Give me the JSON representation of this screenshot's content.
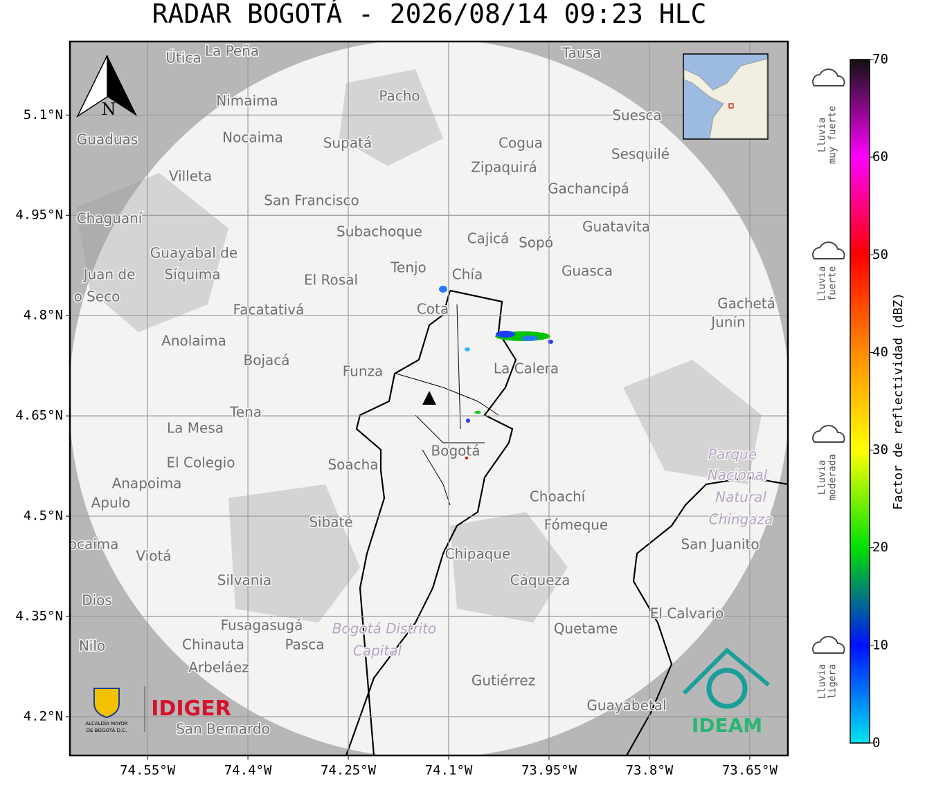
{
  "title": "RADAR BOGOTÁ - 2026/08/14 09:23 HLC",
  "map": {
    "xlim": [
      -74.666,
      -73.593
    ],
    "ylim": [
      4.142,
      5.21
    ],
    "xticks": [
      {
        "value": -74.55,
        "label": "74.55°W"
      },
      {
        "value": -74.4,
        "label": "74.4°W"
      },
      {
        "value": -74.25,
        "label": "74.25°W"
      },
      {
        "value": -74.1,
        "label": "74.1°W"
      },
      {
        "value": -73.95,
        "label": "73.95°W"
      },
      {
        "value": -73.8,
        "label": "73.8°W"
      },
      {
        "value": -73.65,
        "label": "73.65°W"
      }
    ],
    "yticks": [
      {
        "value": 5.1,
        "label": "5.1°N"
      },
      {
        "value": 4.95,
        "label": "4.95°N"
      },
      {
        "value": 4.8,
        "label": "4.8°N"
      },
      {
        "value": 4.65,
        "label": "4.65°N"
      },
      {
        "value": 4.5,
        "label": "4.5°N"
      },
      {
        "value": 4.35,
        "label": "4.35°N"
      },
      {
        "value": 4.2,
        "label": "4.2°N"
      }
    ],
    "grid": true,
    "north": "N",
    "places": [
      "La Peña",
      "Útica",
      "Tausa",
      "Pacho",
      "Nimaima",
      "Suesca",
      "Guaduas",
      "Nocaima",
      "Supatá",
      "Cogua",
      "Sesquilé",
      "Zipaquirá",
      "Villeta",
      "Gachancipá",
      "San Francisco",
      "Chaguaní",
      "Guatavita",
      "Subachoque",
      "Cajicá",
      "Sopó",
      "Guayabal de",
      "Síquima",
      "Tenjo",
      "Chía",
      "Guasca",
      "El Rosal",
      "Juan de",
      "o Seco",
      "Facatativá",
      "Cota",
      "Gachetá",
      "Junín",
      "Anolaima",
      "Bojacá",
      "Funza",
      "La Calera",
      "Tena",
      "La Mesa",
      "Bogotá",
      "Parque",
      "Nacional",
      "Natural",
      "Chingaza",
      "El Colegio",
      "Soacha",
      "Anapoima",
      "Apulo",
      "Choachí",
      "Sibaté",
      "Fómeque",
      "San Juanito",
      "ocaima",
      "Viotá",
      "Chipaque",
      "Silvania",
      "Cáqueza",
      "Dios",
      "El Calvario",
      "Fusagasugá",
      "Bogotá Distrito",
      "Capital",
      "Quetame",
      "Nilo",
      "Chinauta",
      "Pasca",
      "Arbeláez",
      "Gutiérrez",
      "Guayabetal",
      "San Bernardo"
    ]
  },
  "logos": {
    "alcaldia": "ALCALDÍA MAYOR",
    "alcaldia_sub": "DE BOGOTÁ D.C.",
    "idiger": "IDIGER",
    "ideam": "IDEAM"
  },
  "colorbar": {
    "label": "Factor de reflectividad (dBZ)",
    "lim": [
      0,
      70
    ],
    "ticks": [
      0,
      10,
      20,
      30,
      40,
      50,
      60,
      70
    ],
    "colors": [
      "#00e5f0",
      "#0010ff",
      "#00e000",
      "#ffff00",
      "#ff8c00",
      "#ff0000",
      "#ff00ff",
      "#111111"
    ],
    "categories": [
      [
        "Lluvia",
        "muy fuerte"
      ],
      [
        "Lluvia",
        "fuerte"
      ],
      [
        "Lluvia",
        "moderada"
      ],
      [
        "Lluvia",
        "ligera"
      ]
    ]
  }
}
